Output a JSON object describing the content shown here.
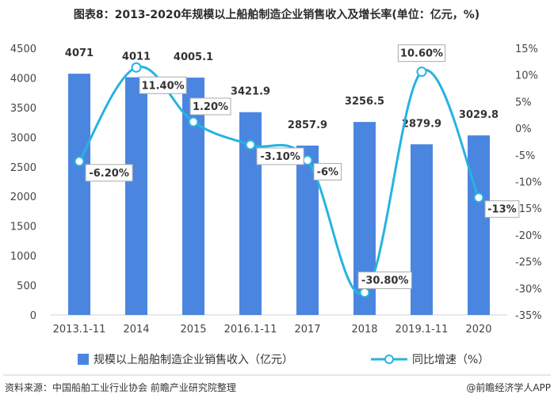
{
  "chart_data": {
    "type": "bar+line",
    "title": "图表8：2013-2020年规模以上船舶制造企业销售收入及增长率(单位：亿元，%)",
    "categories": [
      "2013.1-11",
      "2014",
      "2015",
      "2016.1-11",
      "2017",
      "2018",
      "2019.1-11",
      "2020"
    ],
    "series": [
      {
        "name": "规模以上船舶制造企业销售收入（亿元）",
        "type": "bar",
        "axis": "left",
        "values": [
          4071,
          4011,
          4005.1,
          3421.9,
          2857.9,
          3256.5,
          2879.9,
          3029.8
        ],
        "labels": [
          "4071",
          "4011",
          "4005.1",
          "3421.9",
          "2857.9",
          "3256.5",
          "2879.9",
          "3029.8"
        ]
      },
      {
        "name": "同比增速（%）",
        "type": "line",
        "axis": "right",
        "values": [
          -6.2,
          11.4,
          1.2,
          -3.1,
          -6,
          -30.8,
          10.6,
          -13
        ],
        "labels": [
          "-6.20%",
          "11.40%",
          "1.20%",
          "-3.10%",
          "-6%",
          "-30.80%",
          "10.60%",
          "-13%"
        ]
      }
    ],
    "y_left": {
      "min": 0,
      "max": 4500,
      "step": 500,
      "ticks": [
        "0",
        "500",
        "1000",
        "1500",
        "2000",
        "2500",
        "3000",
        "3500",
        "4000",
        "4500"
      ]
    },
    "y_right": {
      "min": -35,
      "max": 15,
      "step": 5,
      "ticks": [
        "-35%",
        "-30%",
        "-25%",
        "-20%",
        "-15%",
        "-10%",
        "-5%",
        "0%",
        "5%",
        "10%",
        "15%"
      ]
    },
    "colors": {
      "bar": "#4a86e0",
      "line": "#27b3e0",
      "point_fill": "#ffffff"
    },
    "legend_position": "bottom",
    "source": "资料来源：中国船舶工业行业协会 前瞻产业研究院整理",
    "brand": "@前瞻经济学人APP"
  }
}
